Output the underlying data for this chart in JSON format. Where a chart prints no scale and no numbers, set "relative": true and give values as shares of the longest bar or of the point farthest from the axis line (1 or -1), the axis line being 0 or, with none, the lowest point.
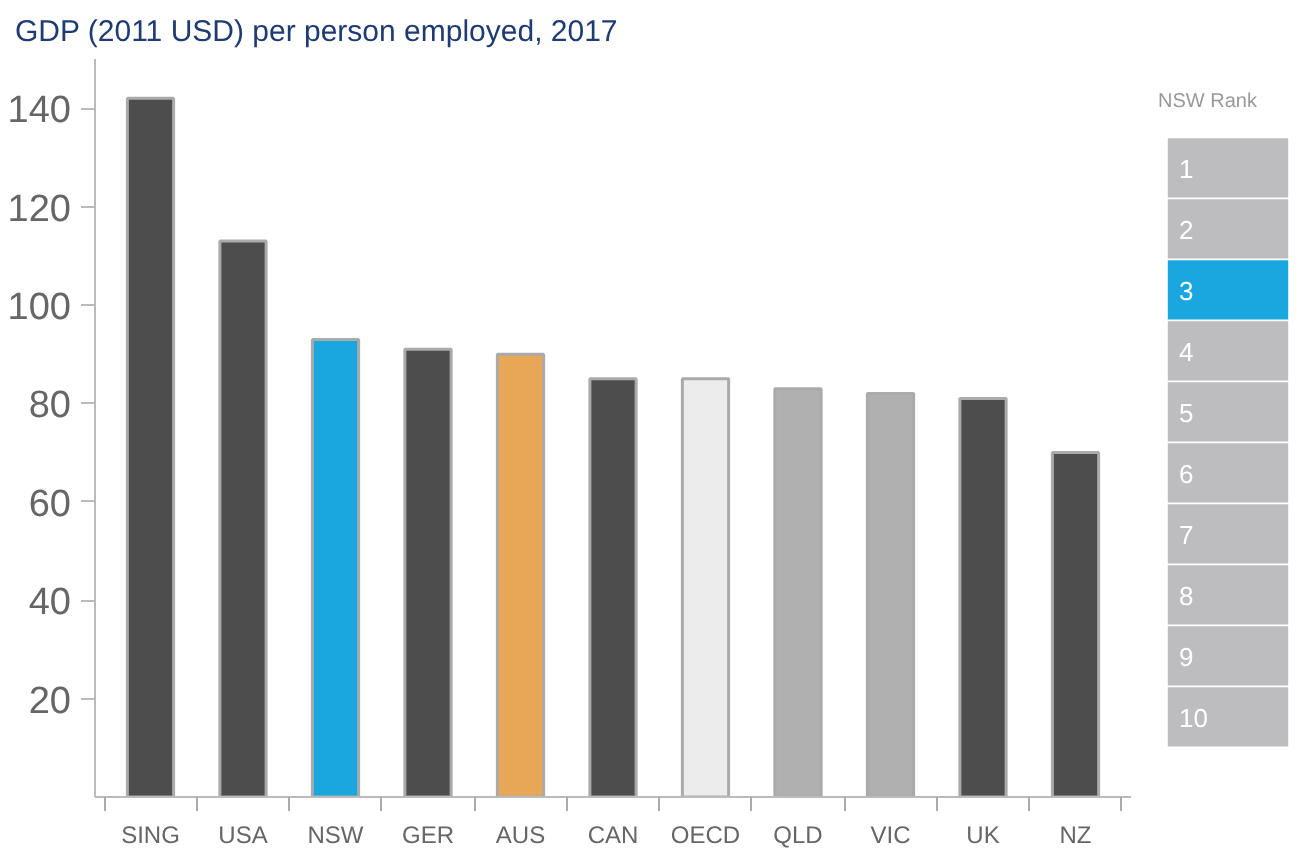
{
  "chart_data": [
    {
      "type": "bar",
      "title": "GDP (2011 USD) per person employed, 2017",
      "categories": [
        "SING",
        "USA",
        "NSW",
        "GER",
        "AUS",
        "CAN",
        "OECD",
        "QLD",
        "VIC",
        "UK",
        "NZ"
      ],
      "values": [
        142,
        113,
        93,
        91,
        90,
        85,
        85,
        83,
        82,
        81,
        70
      ],
      "colors": [
        "#4d4d4d",
        "#4d4d4d",
        "#1aa7e0",
        "#4d4d4d",
        "#e8a657",
        "#4d4d4d",
        "#ececec",
        "#b0b0b0",
        "#b0b0b0",
        "#4d4d4d",
        "#4d4d4d"
      ],
      "ylim": [
        0,
        150
      ],
      "yticks": [
        20,
        40,
        60,
        80,
        100,
        120,
        140
      ],
      "grid": false
    },
    {
      "type": "bar",
      "orientation": "horizontal",
      "relative": true,
      "title": "NSW Rank",
      "categories": [
        "1",
        "2",
        "3",
        "4",
        "5",
        "6",
        "7",
        "8",
        "9",
        "10"
      ],
      "values": [
        1,
        1,
        1,
        1,
        1,
        1,
        1,
        1,
        1,
        1
      ],
      "colors": [
        "#bdbdbf",
        "#bdbdbf",
        "#1aa7e0",
        "#bdbdbf",
        "#bdbdbf",
        "#bdbdbf",
        "#bdbdbf",
        "#bdbdbf",
        "#bdbdbf",
        "#bdbdbf"
      ]
    }
  ]
}
